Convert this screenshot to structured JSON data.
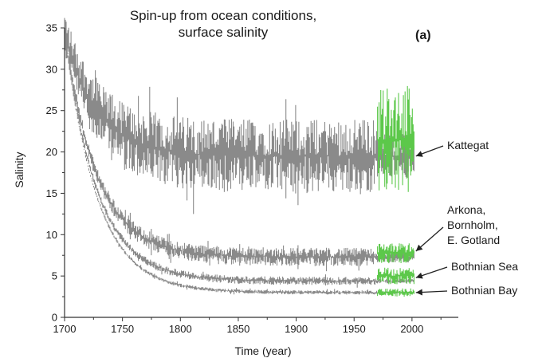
{
  "chart_data": {
    "type": "line",
    "title_line1": "Spin-up from ocean conditions,",
    "title_line2": "surface salinity",
    "panel_label": "(a)",
    "xlabel": "Time (year)",
    "ylabel": "Salinity",
    "xlim": [
      1700,
      2040
    ],
    "ylim": [
      0,
      35
    ],
    "x_ticks": [
      1700,
      1750,
      1800,
      1850,
      1900,
      1950,
      2000
    ],
    "y_ticks": [
      0,
      5,
      10,
      15,
      20,
      25,
      30,
      35
    ],
    "grid": false,
    "colors": {
      "spinup": "#8a8a8a",
      "observed": "#5cc84a",
      "axis": "#333333"
    },
    "observation_period": [
      1970,
      2002
    ],
    "series": [
      {
        "annotation": "Kattegat",
        "start_value": 34.5,
        "equilibrium": 19.5,
        "band_halfwidth": 4.5,
        "observed_range": [
          15,
          28
        ]
      },
      {
        "annotation_lines": [
          "Arkona,",
          "Bornholm,",
          "E. Gotland"
        ],
        "start_value": 34.5,
        "equilibrium": 7.3,
        "band_halfwidth": 1.1,
        "observed_range": [
          6.5,
          9
        ]
      },
      {
        "annotation": "Bothnian Sea",
        "start_value": 34.5,
        "equilibrium": 4.4,
        "band_halfwidth": 0.5,
        "observed_range": [
          4,
          6
        ]
      },
      {
        "annotation": "Bothnian Bay",
        "start_value": 34.5,
        "equilibrium": 3.0,
        "band_halfwidth": 0.25,
        "observed_range": [
          2.5,
          3.5
        ]
      }
    ]
  }
}
